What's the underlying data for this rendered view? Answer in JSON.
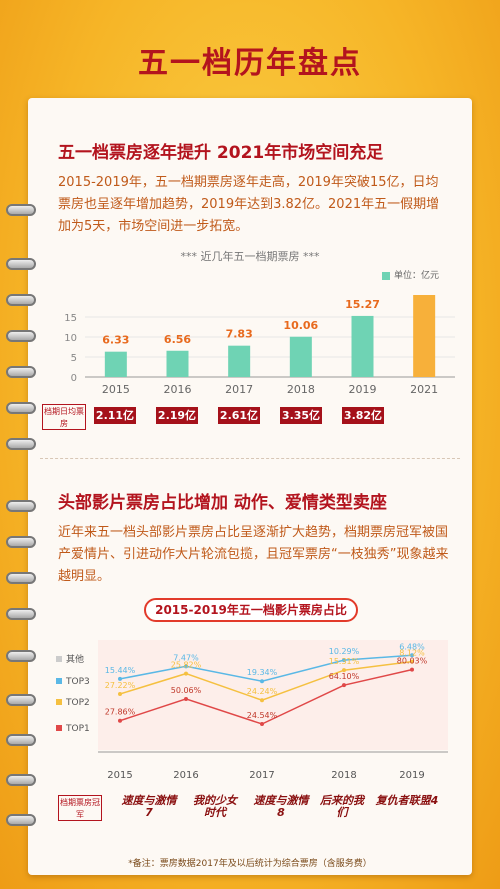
{
  "page_title": "五一档历年盘点",
  "section1": {
    "title": "五一档票房逐年提升  2021年市场空间充足",
    "paragraph": "2015-2019年，五一档期票房逐年走高，2019年突破15亿，日均票房也呈逐年增加趋势，2019年达到3.82亿。2021年五一假期增加为5天，市场空间进一步拓宽。"
  },
  "chart1_title": "*** 近几年五一档期票房 ***",
  "chart1_unit": "单位：亿元",
  "daily_label": "档期日均票房",
  "daily_badges": [
    "2.11亿",
    "2.19亿",
    "2.61亿",
    "3.35亿",
    "3.82亿"
  ],
  "section2": {
    "title": "头部影片票房占比增加 动作、爱情类型卖座",
    "paragraph": "近年来五一档头部影片票房占比呈逐渐扩大趋势，档期票房冠军被国产爱情片、引进动作大片轮流包揽，且冠军票房“一枝独秀”现象越来越明显。"
  },
  "chart2_title": "2015-2019年五一档影片票房占比",
  "champion_label": "档期票房冠军",
  "champions": [
    "速度与激情7",
    "我的少女时代",
    "速度与激情8",
    "后来的我们",
    "复仇者联盟4"
  ],
  "footnote": "*备注：票房数据2017年及以后统计为综合票房（含服务费）",
  "colors": {
    "bar": "#6fd3b4",
    "bar_highlight": "#f7b03a",
    "top3": "#5ab8e6",
    "top2": "#f5c040",
    "top1": "#e04848",
    "other": "#cccccc"
  },
  "chart_data": [
    {
      "type": "bar",
      "title": "近几年五一档期票房",
      "categories": [
        "2015",
        "2016",
        "2017",
        "2018",
        "2019",
        "2021"
      ],
      "values": [
        6.33,
        6.56,
        7.83,
        10.06,
        15.27,
        null
      ],
      "ylabel": "单位：亿元",
      "ylim": [
        0,
        20
      ],
      "yticks": [
        0,
        5,
        10,
        15
      ],
      "grid": true
    },
    {
      "type": "line",
      "title": "2015-2019年五一档影片票房占比",
      "categories": [
        "2015",
        "2016",
        "2017",
        "2018",
        "2019"
      ],
      "series": [
        {
          "name": "TOP3",
          "values": [
            15.44,
            7.47,
            19.34,
            10.29,
            6.48
          ]
        },
        {
          "name": "TOP2",
          "values": [
            27.22,
            25.82,
            24.24,
            15.31,
            8.12
          ]
        },
        {
          "name": "TOP1",
          "values": [
            27.86,
            50.06,
            24.54,
            64.1,
            80.03
          ]
        }
      ],
      "legend": [
        "其他",
        "TOP3",
        "TOP2",
        "TOP1"
      ],
      "labels": {
        "TOP3": [
          "15.44%",
          "7.47%",
          "19.34%",
          "10.29%",
          "6.48%"
        ],
        "TOP2": [
          "27.22%",
          "25.82%",
          "24.24%",
          "15.31%",
          "8.12%"
        ],
        "TOP1": [
          "27.86%",
          "50.06%",
          "24.54%",
          "64.10%",
          "80.03%"
        ]
      }
    }
  ]
}
